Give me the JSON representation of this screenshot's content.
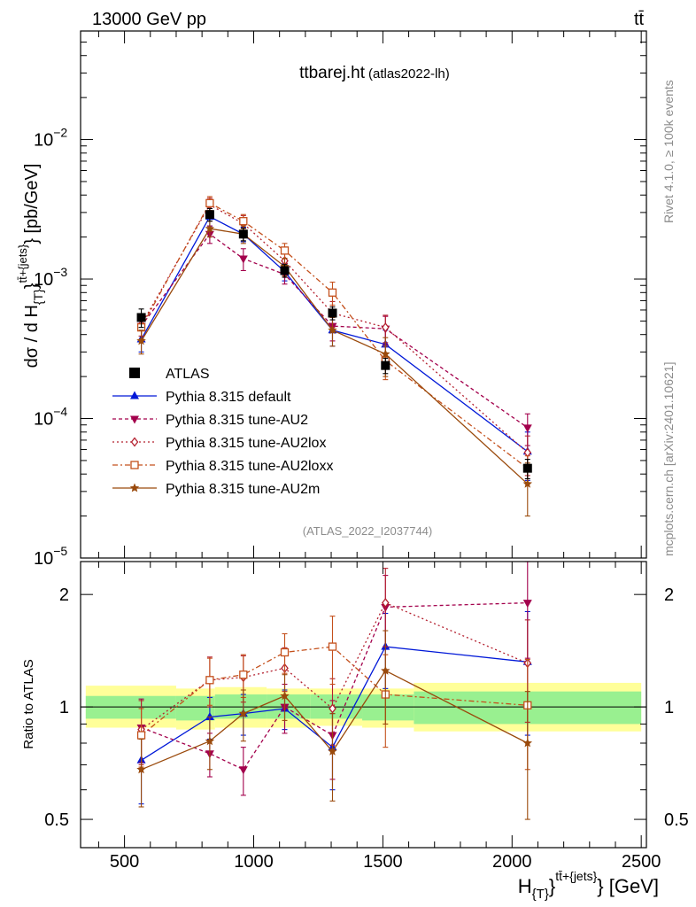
{
  "header": {
    "left": "13000 GeV pp",
    "right": "tt̄"
  },
  "side_labels": {
    "rivet": "Rivet 4.1.0, ≥ 100k events",
    "mcplots": "mcplots.cern.ch [arXiv:2401.10621]"
  },
  "chart_data": [
    {
      "type": "line",
      "panel": "main",
      "title": "ttbarej.ht",
      "subtitle": "(atlas2022-lh)",
      "watermark": "(ATLAS_2022_I2037744)",
      "ylabel": "dσ / d H{T}^{tt̄+{jets}} [pb/GeV]",
      "yscale": "log",
      "ylim": [
        1e-05,
        0.06
      ],
      "xlim": [
        330,
        2520
      ],
      "ytick_labels": [
        {
          "value": 0.01,
          "base": "10",
          "exp": "−2"
        },
        {
          "value": 0.001,
          "base": "10",
          "exp": "−3"
        },
        {
          "value": 0.0001,
          "base": "10",
          "exp": "−4"
        },
        {
          "value": 1e-05,
          "base": "10",
          "exp": "−5"
        }
      ],
      "x": [
        565,
        830,
        960,
        1120,
        1305,
        1510,
        2060
      ],
      "series": [
        {
          "name": "ATLAS",
          "key": "atlas",
          "color": "#000000",
          "marker": "square-filled",
          "dash": "none",
          "values": [
            0.00053,
            0.0029,
            0.0021,
            0.00115,
            0.00057,
            0.00024,
            4.4e-05
          ],
          "errors": [
            8e-05,
            0.0003,
            0.00022,
            0.00012,
            6e-05,
            3e-05,
            7e-06
          ]
        },
        {
          "name": "Pythia 8.315 default",
          "key": "default",
          "color": "#0018d8",
          "marker": "triangle-up",
          "dash": "solid",
          "values": [
            0.00037,
            0.0028,
            0.0021,
            0.00113,
            0.00043,
            0.00034,
            5.8e-05
          ],
          "errors": [
            7e-05,
            0.0004,
            0.00025,
            0.00016,
            0.0001,
            9e-05,
            2.2e-05
          ]
        },
        {
          "name": "Pythia 8.315 tune-AU2",
          "key": "au2",
          "color": "#a3004c",
          "marker": "triangle-down",
          "dash": "4,3",
          "values": [
            0.00046,
            0.0021,
            0.0014,
            0.00108,
            0.00046,
            0.00044,
            8.6e-05
          ],
          "errors": [
            9e-05,
            0.0003,
            0.00025,
            0.00016,
            0.0001,
            0.0001,
            2.2e-05
          ]
        },
        {
          "name": "Pythia 8.315 tune-AU2lox",
          "key": "au2lox",
          "color": "#b4202f",
          "marker": "diamond-open",
          "dash": "2,3",
          "values": [
            0.00047,
            0.0034,
            0.0025,
            0.00135,
            0.00057,
            0.00045,
            5.7e-05
          ],
          "errors": [
            8e-05,
            0.0004,
            0.00035,
            0.00018,
            0.00012,
            0.0001,
            1.8e-05
          ]
        },
        {
          "name": "Pythia 8.315 tune-AU2loxx",
          "key": "au2loxx",
          "color": "#c4501c",
          "marker": "square-open",
          "dash": "6,3,2,3",
          "values": [
            0.00045,
            0.0035,
            0.0026,
            0.0016,
            0.0008,
            0.00026,
            4.4e-05
          ],
          "errors": [
            8e-05,
            0.0004,
            0.0003,
            0.0002,
            0.00015,
            7e-05,
            1e-05
          ]
        },
        {
          "name": "Pythia 8.315 tune-AU2m",
          "key": "au2m",
          "color": "#9a4a0c",
          "marker": "star",
          "dash": "solid",
          "values": [
            0.00036,
            0.0023,
            0.0021,
            0.00123,
            0.00043,
            0.00029,
            3.4e-05
          ],
          "errors": [
            7e-05,
            0.0003,
            0.0003,
            0.00018,
            0.0001,
            9e-05,
            1.4e-05
          ]
        }
      ]
    },
    {
      "type": "line",
      "panel": "ratio",
      "ylabel": "Ratio to ATLAS",
      "yscale": "log",
      "ylim": [
        0.42,
        2.45
      ],
      "xlim": [
        330,
        2520
      ],
      "xlabel": "H{T}^{tt̄+{jets}} [GeV]",
      "xtick_labels": [
        "500",
        "1000",
        "1500",
        "2000",
        "2500"
      ],
      "xticks": [
        500,
        1000,
        1500,
        2000,
        2500
      ],
      "ytick_labels": [
        "2",
        "1",
        "0.5"
      ],
      "yticks": [
        2,
        1,
        0.5
      ],
      "band_edges": [
        350,
        700,
        850,
        1050,
        1220,
        1420,
        1620,
        2500
      ],
      "band_stat": [
        [
          0.93,
          1.07
        ],
        [
          0.92,
          1.07
        ],
        [
          0.93,
          1.08
        ],
        [
          0.93,
          1.08
        ],
        [
          0.93,
          1.08
        ],
        [
          0.92,
          1.08
        ],
        [
          0.9,
          1.1
        ]
      ],
      "band_total": [
        [
          0.88,
          1.14
        ],
        [
          0.87,
          1.12
        ],
        [
          0.88,
          1.13
        ],
        [
          0.88,
          1.12
        ],
        [
          0.89,
          1.12
        ],
        [
          0.88,
          1.12
        ],
        [
          0.86,
          1.16
        ]
      ],
      "x": [
        565,
        830,
        960,
        1120,
        1305,
        1510,
        2060
      ],
      "series": [
        {
          "key": "default",
          "values": [
            0.72,
            0.94,
            0.96,
            0.99,
            0.78,
            1.45,
            1.32
          ],
          "errors": [
            0.17,
            0.12,
            0.12,
            0.12,
            0.18,
            0.33,
            0.48
          ]
        },
        {
          "key": "au2",
          "values": [
            0.88,
            0.75,
            0.68,
            1.0,
            0.84,
            1.85,
            1.9
          ],
          "errors": [
            0.17,
            0.1,
            0.1,
            0.15,
            0.2,
            0.4,
            0.55
          ]
        },
        {
          "key": "au2lox",
          "values": [
            0.87,
            1.18,
            1.2,
            1.27,
            0.99,
            1.9,
            1.31
          ],
          "errors": [
            0.17,
            0.18,
            0.17,
            0.17,
            0.2,
            0.45,
            0.4
          ]
        },
        {
          "key": "au2loxx",
          "values": [
            0.84,
            1.18,
            1.22,
            1.4,
            1.45,
            1.08,
            1.01
          ],
          "errors": [
            0.15,
            0.17,
            0.16,
            0.17,
            0.3,
            0.3,
            0.33
          ]
        },
        {
          "key": "au2m",
          "values": [
            0.68,
            0.81,
            0.96,
            1.07,
            0.76,
            1.25,
            0.8
          ],
          "errors": [
            0.14,
            0.13,
            0.15,
            0.15,
            0.2,
            0.35,
            0.3
          ]
        }
      ]
    }
  ]
}
